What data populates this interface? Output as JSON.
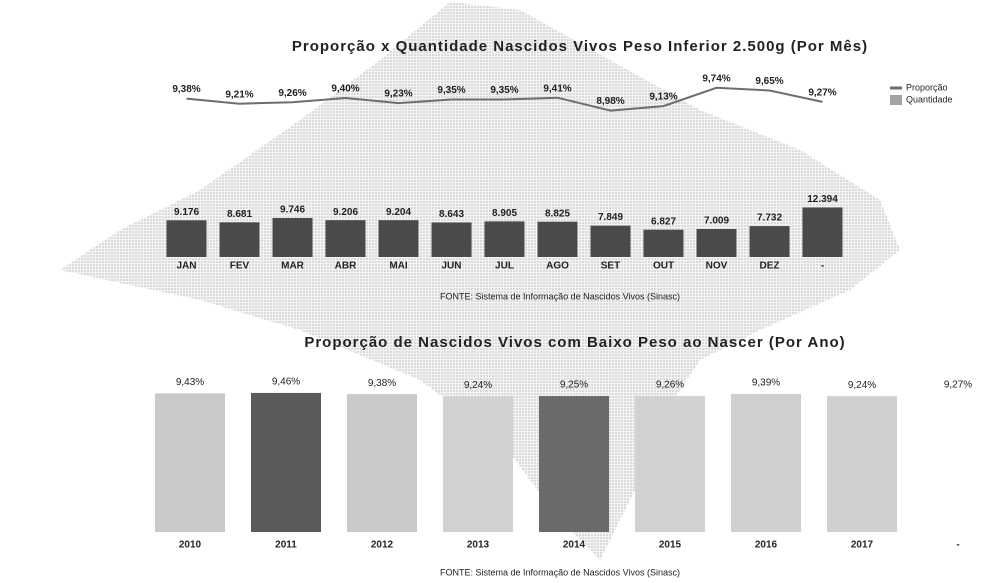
{
  "chart_data": [
    {
      "type": "combo",
      "title": "Proporção x Quantidade Nascidos Vivos Peso Inferior 2.500g (Por Mês)",
      "categories": [
        "JAN",
        "FEV",
        "MAR",
        "ABR",
        "MAI",
        "JUN",
        "JUL",
        "AGO",
        "SET",
        "OUT",
        "NOV",
        "DEZ",
        "-"
      ],
      "series": [
        {
          "name": "Proporção",
          "kind": "line",
          "axis": "y2",
          "color": "#6e6e6e",
          "values": [
            9.38,
            9.21,
            9.26,
            9.4,
            9.23,
            9.35,
            9.35,
            9.41,
            8.98,
            9.13,
            9.74,
            9.65,
            9.27
          ],
          "value_labels": [
            "9,38%",
            "9,21%",
            "9,26%",
            "9,40%",
            "9,23%",
            "9,35%",
            "9,35%",
            "9,41%",
            "8,98%",
            "9,13%",
            "9,74%",
            "9,65%",
            "9,27%"
          ]
        },
        {
          "name": "Quantidade",
          "kind": "bar",
          "color": "#4a4a4a",
          "values": [
            9176,
            8681,
            9746,
            9206,
            9204,
            8643,
            8905,
            8825,
            7849,
            6827,
            7009,
            7732,
            12394
          ],
          "value_labels": [
            "9.176",
            "8.681",
            "9.746",
            "9.206",
            "9.204",
            "8.643",
            "8.905",
            "8.825",
            "7.849",
            "6.827",
            "7.009",
            "7.732",
            "12.394"
          ]
        }
      ],
      "ylim": [
        0,
        13000
      ],
      "y2lim": [
        8.5,
        10
      ],
      "source": "FONTE: Sistema de Informação de Nascidos Vivos (Sinasc)"
    },
    {
      "type": "bar",
      "title": "Proporção de Nascidos Vivos com Baixo Peso ao Nascer (Por Ano)",
      "categories": [
        "2010",
        "2011",
        "2012",
        "2013",
        "2014",
        "2015",
        "2016",
        "2017",
        "-"
      ],
      "values": [
        9.43,
        9.46,
        9.38,
        9.24,
        9.25,
        9.26,
        9.39,
        9.24,
        9.27
      ],
      "value_labels": [
        "9,43%",
        "9,46%",
        "9,38%",
        "9,24%",
        "9,25%",
        "9,26%",
        "9,39%",
        "9,24%",
        "9,27%"
      ],
      "colors": [
        "#c9c9c9",
        "#5a5a5a",
        "#c9c9c9",
        "#d2d2d2",
        "#6a6a6a",
        "#d2d2d2",
        "#cfcfcf",
        "#cfcfcf",
        "#ffffff"
      ],
      "ylim": [
        0,
        10
      ],
      "source": "FONTE: Sistema de Informação de Nascidos Vivos (Sinasc)"
    }
  ]
}
